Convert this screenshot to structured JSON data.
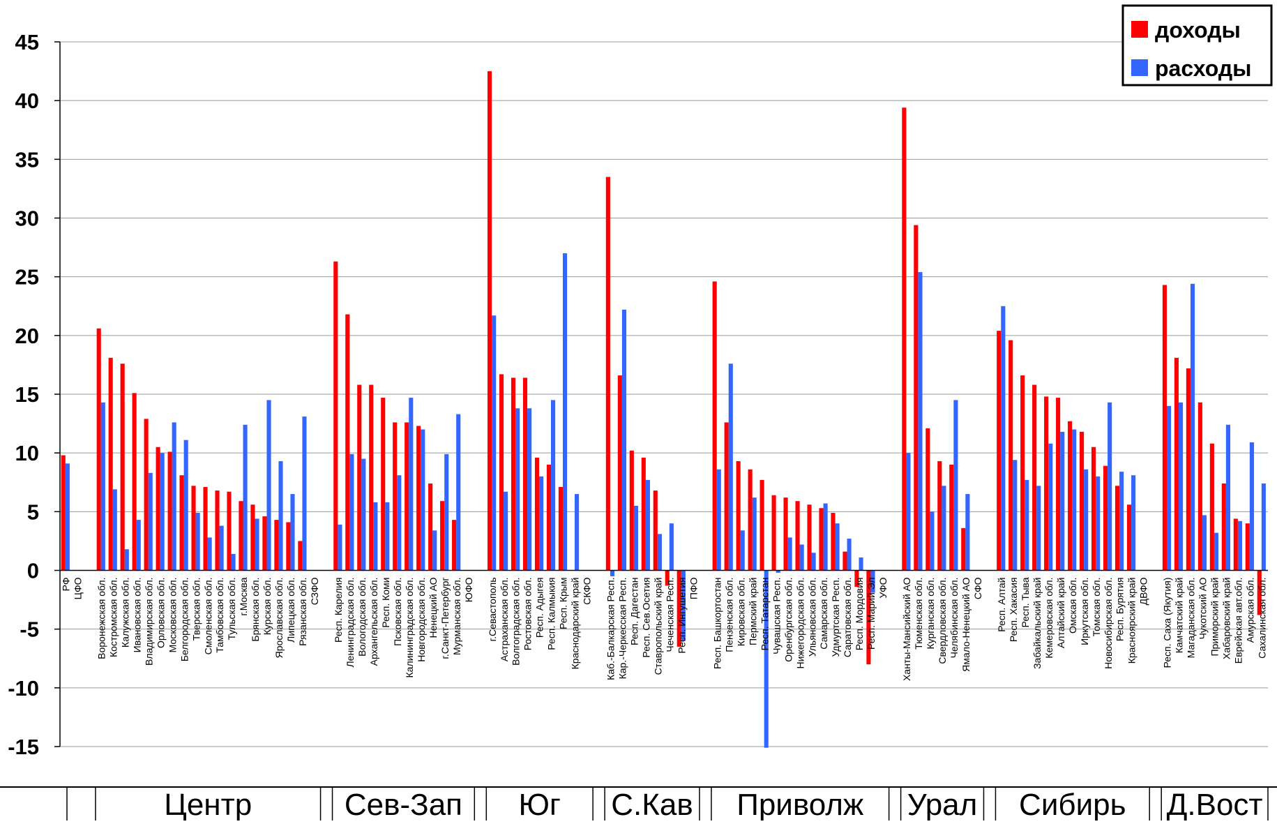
{
  "chart_data": {
    "type": "bar",
    "title": "",
    "xlabel": "",
    "ylabel": "",
    "ylim": [
      -15,
      45
    ],
    "yticks": [
      -15,
      -10,
      -5,
      0,
      5,
      10,
      15,
      20,
      25,
      30,
      35,
      40,
      45
    ],
    "grid": true,
    "legend_position": "top-right",
    "colors": {
      "доходы": "#ff0000",
      "расходы": "#3366ff"
    },
    "categories": [
      "РФ",
      "ЦФО",
      "",
      "Воронежская обл.",
      "Костромская обл.",
      "Калужская обл.",
      "Ивановская обл.",
      "Владимирская обл.",
      "Орловская обл.",
      "Московская обл.",
      "Белгородская обл.",
      "Тверская обл.",
      "Смоленская обл.",
      "Тамбовская обл.",
      "Тульская обл.",
      "г.Москва",
      "Брянская обл.",
      "Курская обл.",
      "Ярославская обл.",
      "Липецкая обл.",
      "Рязанская обл.",
      "СЗФО",
      "",
      "Респ. Карелия",
      "Ленинградская обл.",
      "Вологодская обл.",
      "Архангельская обл.",
      "Респ. Коми",
      "Псковская обл.",
      "Калининградская обл.",
      "Новгородская обл.",
      "Ненецкий АО",
      "г.Санкт-Петербург",
      "Мурманская обл.",
      "ЮФО",
      "",
      "г.Севастополь",
      "Астраханская обл.",
      "Волгоградская обл.",
      "Ростовская обл.",
      "Респ. Адыгея",
      "Респ. Калмыкия",
      "Респ. Крым",
      "Краснодарский край",
      "СКФО",
      "",
      "Каб.-Балкарская Респ.",
      "Кар.-Черкесская Респ.",
      "Респ. Дагестан",
      "Респ. Сев.Осетия",
      "Ставропольский край",
      "Чеченская Респ.",
      "Респ. Ингушетия",
      "ПФО",
      "",
      "Респ. Башкортостан",
      "Пензенская обл.",
      "Кировская обл.",
      "Пермский край",
      "Респ. Татарстан",
      "Чувашская Респ.",
      "Оренбургская обл.",
      "Нижегородская обл.",
      "Ульяновская обл.",
      "Самарская обл.",
      "Удмуртская Респ.",
      "Саратовская обл.",
      "Респ. Мордовия",
      "Респ. Марий Эл",
      "УФО",
      "",
      "Ханты-Мансийский АО",
      "Тюменская обл.",
      "Курганская обл.",
      "Свердловская обл.",
      "Челябинская обл.",
      "Ямало-Ненецкий АО",
      "СФО",
      "",
      "Респ. Алтай",
      "Респ. Хакасия",
      "Респ. Тыва",
      "Забайкальский край",
      "Кемеровская обл.",
      "Алтайский край",
      "Омская обл.",
      "Иркутская обл.",
      "Томская обл.",
      "Новосибирская обл.",
      "Респ. Бурятия",
      "Красноярский край",
      "ДВФО",
      "",
      "Респ. Саха (Якутия)",
      "Камчатский край",
      "Магаданская обл.",
      "Чукотский АО",
      "Приморский край",
      "Хабаровский край",
      "Еврейская авт.обл.",
      "Амурская обл.",
      "Сахалинская обл."
    ],
    "series": [
      {
        "name": "доходы",
        "values": [
          9.8,
          null,
          null,
          20.6,
          18.1,
          17.6,
          15.1,
          12.9,
          10.5,
          10.1,
          8.1,
          7.2,
          7.1,
          6.8,
          6.7,
          5.9,
          5.6,
          4.6,
          4.3,
          4.1,
          2.5,
          null,
          null,
          26.3,
          21.8,
          15.8,
          15.8,
          14.7,
          12.6,
          12.6,
          12.3,
          7.4,
          5.9,
          4.3,
          null,
          null,
          42.5,
          16.7,
          16.4,
          16.4,
          9.6,
          9.0,
          7.1,
          null,
          null,
          null,
          33.5,
          16.6,
          10.2,
          9.6,
          6.8,
          -1.3,
          -6.5,
          null,
          null,
          24.6,
          12.6,
          9.3,
          8.6,
          7.7,
          6.4,
          6.2,
          5.9,
          5.6,
          5.3,
          4.9,
          1.6,
          -1.4,
          -8.0,
          null,
          null,
          39.4,
          29.4,
          12.1,
          9.3,
          9.0,
          3.6,
          null,
          null,
          20.4,
          19.6,
          16.6,
          15.8,
          14.8,
          14.7,
          12.7,
          11.8,
          10.5,
          8.9,
          7.2,
          5.6,
          null,
          null,
          24.3,
          18.1,
          17.2,
          14.3,
          10.8,
          7.4,
          4.4,
          4.0,
          -3.8
        ]
      },
      {
        "name": "расходы",
        "values": [
          9.1,
          null,
          null,
          14.3,
          6.9,
          1.8,
          4.3,
          8.3,
          10.0,
          12.6,
          11.1,
          4.9,
          2.8,
          3.8,
          1.4,
          12.4,
          4.4,
          14.5,
          9.3,
          6.5,
          13.1,
          null,
          null,
          3.9,
          9.9,
          9.5,
          5.8,
          5.8,
          8.1,
          14.7,
          12.0,
          3.4,
          9.9,
          13.3,
          null,
          null,
          21.7,
          6.7,
          13.8,
          13.8,
          8.0,
          14.5,
          27.0,
          6.5,
          null,
          null,
          -0.5,
          22.2,
          5.5,
          7.7,
          3.1,
          4.0,
          -6.0,
          null,
          null,
          8.6,
          17.6,
          3.4,
          6.2,
          -15.1,
          -0.2,
          2.8,
          2.2,
          1.5,
          5.7,
          4.0,
          2.7,
          1.1,
          -1.9,
          null,
          null,
          10.0,
          25.4,
          5.0,
          7.2,
          14.5,
          6.5,
          null,
          null,
          22.5,
          9.4,
          7.7,
          7.2,
          10.8,
          11.8,
          12.0,
          8.6,
          8.0,
          14.3,
          8.4,
          8.1,
          null,
          null,
          14.0,
          14.3,
          24.4,
          4.7,
          3.2,
          12.4,
          4.2,
          10.9,
          7.4
        ]
      }
    ],
    "districts": [
      {
        "label": "Центр",
        "start": 3,
        "end": 21
      },
      {
        "label": "Сев-Зап",
        "start": 23,
        "end": 34
      },
      {
        "label": "Юг",
        "start": 36,
        "end": 44
      },
      {
        "label": "С.Кав",
        "start": 46,
        "end": 53
      },
      {
        "label": "Приволж",
        "start": 55,
        "end": 69
      },
      {
        "label": "Урал",
        "start": 71,
        "end": 77
      },
      {
        "label": "Сибирь",
        "start": 79,
        "end": 91
      },
      {
        "label": "Д.Вост",
        "start": 93,
        "end": 101
      }
    ]
  }
}
